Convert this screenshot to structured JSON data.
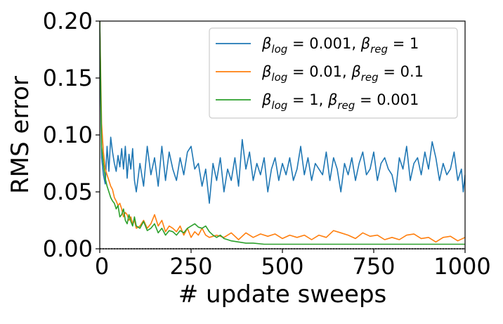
{
  "chart_data": {
    "type": "line",
    "title": "",
    "xlabel": "# update sweeps",
    "ylabel": "RMS error",
    "xlim": [
      0,
      1000
    ],
    "ylim": [
      0,
      0.2
    ],
    "xticks": [
      0,
      250,
      500,
      750,
      1000
    ],
    "xtick_labels": [
      "0",
      "250",
      "500",
      "750",
      "1000"
    ],
    "yticks": [
      0,
      0.05,
      0.1,
      0.15,
      0.2
    ],
    "ytick_labels": [
      "0.00",
      "0.05",
      "0.10",
      "0.15",
      "0.20"
    ],
    "grid": false,
    "legend_position": "top-right",
    "series": [
      {
        "name": "β_log = 0.001, β_reg = 1",
        "legend": {
          "b1": "β",
          "s1": "log",
          "mid": " = 0.001, ",
          "b2": "β",
          "s2": "reg",
          "tail": " = 1"
        },
        "color": "#1f77b4",
        "x": [
          0,
          5,
          10,
          15,
          20,
          25,
          30,
          35,
          40,
          45,
          50,
          55,
          60,
          65,
          70,
          75,
          80,
          85,
          90,
          95,
          100,
          110,
          120,
          130,
          140,
          150,
          160,
          170,
          180,
          190,
          200,
          210,
          220,
          230,
          240,
          250,
          260,
          270,
          280,
          290,
          300,
          310,
          320,
          330,
          340,
          350,
          360,
          370,
          380,
          390,
          400,
          410,
          420,
          430,
          440,
          450,
          460,
          470,
          480,
          490,
          500,
          510,
          520,
          530,
          540,
          550,
          560,
          570,
          580,
          590,
          600,
          610,
          620,
          630,
          640,
          650,
          660,
          670,
          680,
          690,
          700,
          710,
          720,
          730,
          740,
          750,
          760,
          770,
          780,
          790,
          800,
          810,
          820,
          830,
          840,
          850,
          860,
          870,
          880,
          890,
          900,
          910,
          920,
          930,
          940,
          950,
          960,
          970,
          980,
          990,
          995,
          1000
        ],
        "y": [
          0.2,
          0.08,
          0.065,
          0.057,
          0.09,
          0.068,
          0.098,
          0.085,
          0.075,
          0.068,
          0.082,
          0.072,
          0.088,
          0.07,
          0.09,
          0.062,
          0.083,
          0.07,
          0.088,
          0.06,
          0.05,
          0.075,
          0.055,
          0.09,
          0.065,
          0.08,
          0.055,
          0.09,
          0.06,
          0.085,
          0.07,
          0.06,
          0.08,
          0.065,
          0.085,
          0.09,
          0.07,
          0.075,
          0.055,
          0.07,
          0.04,
          0.075,
          0.06,
          0.08,
          0.05,
          0.07,
          0.06,
          0.08,
          0.055,
          0.096,
          0.07,
          0.085,
          0.06,
          0.075,
          0.065,
          0.08,
          0.05,
          0.07,
          0.08,
          0.06,
          0.075,
          0.065,
          0.08,
          0.06,
          0.07,
          0.09,
          0.065,
          0.08,
          0.06,
          0.075,
          0.07,
          0.065,
          0.085,
          0.06,
          0.08,
          0.07,
          0.05,
          0.075,
          0.065,
          0.08,
          0.06,
          0.075,
          0.085,
          0.065,
          0.07,
          0.085,
          0.06,
          0.075,
          0.08,
          0.07,
          0.065,
          0.05,
          0.08,
          0.07,
          0.09,
          0.06,
          0.075,
          0.08,
          0.065,
          0.085,
          0.07,
          0.094,
          0.08,
          0.06,
          0.075,
          0.065,
          0.07,
          0.085,
          0.06,
          0.07,
          0.05,
          0.065
        ]
      },
      {
        "name": "β_log = 0.01, β_reg = 0.1",
        "legend": {
          "b1": "β",
          "s1": "log",
          "mid": " = 0.01, ",
          "b2": "β",
          "s2": "reg",
          "tail": " = 0.1"
        },
        "color": "#ff7f0e",
        "x": [
          0,
          5,
          10,
          15,
          20,
          25,
          30,
          35,
          40,
          45,
          50,
          55,
          60,
          65,
          70,
          75,
          80,
          85,
          90,
          95,
          100,
          110,
          120,
          130,
          140,
          150,
          160,
          170,
          180,
          190,
          200,
          210,
          220,
          230,
          240,
          250,
          260,
          270,
          280,
          290,
          300,
          320,
          340,
          360,
          380,
          400,
          420,
          440,
          460,
          480,
          500,
          520,
          540,
          560,
          580,
          600,
          620,
          640,
          660,
          680,
          700,
          720,
          740,
          760,
          780,
          800,
          820,
          840,
          860,
          880,
          900,
          920,
          940,
          960,
          980,
          1000
        ],
        "y": [
          0.2,
          0.11,
          0.085,
          0.07,
          0.065,
          0.06,
          0.055,
          0.052,
          0.045,
          0.042,
          0.038,
          0.04,
          0.035,
          0.028,
          0.032,
          0.03,
          0.025,
          0.028,
          0.022,
          0.025,
          0.018,
          0.02,
          0.025,
          0.018,
          0.022,
          0.03,
          0.02,
          0.025,
          0.015,
          0.02,
          0.018,
          0.015,
          0.02,
          0.012,
          0.018,
          0.01,
          0.015,
          0.012,
          0.018,
          0.012,
          0.01,
          0.012,
          0.01,
          0.014,
          0.008,
          0.014,
          0.01,
          0.013,
          0.011,
          0.013,
          0.009,
          0.012,
          0.01,
          0.012,
          0.008,
          0.012,
          0.01,
          0.016,
          0.014,
          0.012,
          0.009,
          0.014,
          0.011,
          0.012,
          0.008,
          0.01,
          0.008,
          0.012,
          0.013,
          0.009,
          0.01,
          0.006,
          0.01,
          0.011,
          0.007,
          0.01
        ]
      },
      {
        "name": "β_log = 1, β_reg = 0.001",
        "legend": {
          "b1": "β",
          "s1": "log",
          "mid": " = 1, ",
          "b2": "β",
          "s2": "reg",
          "tail": " = 0.001"
        },
        "color": "#2ca02c",
        "x": [
          0,
          5,
          10,
          15,
          20,
          25,
          30,
          35,
          40,
          45,
          50,
          55,
          60,
          65,
          70,
          75,
          80,
          85,
          90,
          95,
          100,
          110,
          120,
          130,
          140,
          150,
          160,
          170,
          180,
          190,
          200,
          210,
          220,
          230,
          240,
          250,
          260,
          270,
          280,
          290,
          300,
          310,
          320,
          330,
          340,
          350,
          360,
          380,
          400,
          420,
          450,
          500,
          550,
          600,
          650,
          700,
          750,
          800,
          850,
          900,
          950,
          1000
        ],
        "y": [
          0.2,
          0.09,
          0.075,
          0.062,
          0.055,
          0.05,
          0.045,
          0.042,
          0.04,
          0.035,
          0.038,
          0.028,
          0.03,
          0.035,
          0.025,
          0.022,
          0.03,
          0.024,
          0.02,
          0.028,
          0.02,
          0.018,
          0.024,
          0.016,
          0.018,
          0.022,
          0.014,
          0.018,
          0.012,
          0.016,
          0.015,
          0.012,
          0.016,
          0.014,
          0.018,
          0.02,
          0.022,
          0.019,
          0.018,
          0.02,
          0.015,
          0.012,
          0.01,
          0.012,
          0.009,
          0.008,
          0.007,
          0.006,
          0.005,
          0.005,
          0.004,
          0.004,
          0.004,
          0.004,
          0.004,
          0.004,
          0.004,
          0.004,
          0.004,
          0.004,
          0.004,
          0.004
        ]
      }
    ]
  }
}
